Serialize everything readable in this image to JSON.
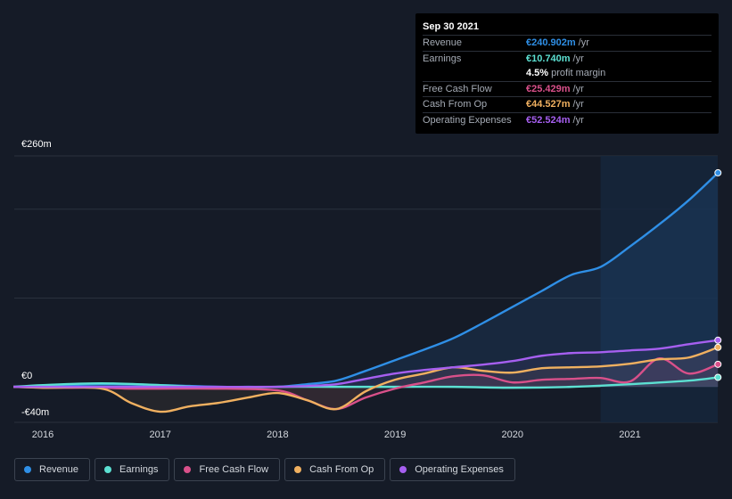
{
  "tooltip": {
    "date": "Sep 30 2021",
    "rows": [
      {
        "label": "Revenue",
        "value": "€240.902m",
        "unit": "/yr",
        "color": "#2f8fe6"
      },
      {
        "label": "Earnings",
        "value": "€10.740m",
        "unit": "/yr",
        "color": "#5ce0d2"
      },
      {
        "label": "",
        "value": "4.5%",
        "unit": "profit margin",
        "color": "#ffffff"
      },
      {
        "label": "Free Cash Flow",
        "value": "€25.429m",
        "unit": "/yr",
        "color": "#d9508a"
      },
      {
        "label": "Cash From Op",
        "value": "€44.527m",
        "unit": "/yr",
        "color": "#f0b060"
      },
      {
        "label": "Operating Expenses",
        "value": "€52.524m",
        "unit": "/yr",
        "color": "#a65ff0"
      }
    ]
  },
  "legend": [
    {
      "label": "Revenue",
      "color": "#2f8fe6"
    },
    {
      "label": "Earnings",
      "color": "#5ce0d2"
    },
    {
      "label": "Free Cash Flow",
      "color": "#d9508a"
    },
    {
      "label": "Cash From Op",
      "color": "#f0b060"
    },
    {
      "label": "Operating Expenses",
      "color": "#a65ff0"
    }
  ],
  "chart_data": {
    "type": "line",
    "ylim": [
      -40,
      260
    ],
    "y_tick_labels": {
      "top": "€260m",
      "zero": "€0",
      "bottom": "-€40m"
    },
    "x_tick_labels": [
      "2016",
      "2017",
      "2018",
      "2019",
      "2020",
      "2021"
    ],
    "x_range": [
      2015.75,
      2021.75
    ],
    "series": [
      {
        "name": "Revenue",
        "color": "#2f8fe6",
        "x": [
          2015.75,
          2016.0,
          2016.5,
          2017.0,
          2017.25,
          2017.5,
          2017.75,
          2018.0,
          2018.25,
          2018.5,
          2018.75,
          2019.0,
          2019.25,
          2019.5,
          2019.75,
          2020.0,
          2020.25,
          2020.5,
          2020.75,
          2021.0,
          2021.25,
          2021.5,
          2021.75
        ],
        "y": [
          0,
          1,
          3,
          2,
          1,
          0,
          0,
          0,
          3,
          7,
          18,
          30,
          42,
          55,
          72,
          90,
          108,
          126,
          135,
          158,
          183,
          210,
          241
        ]
      },
      {
        "name": "Earnings",
        "color": "#5ce0d2",
        "x": [
          2015.75,
          2016.0,
          2016.5,
          2017.0,
          2017.5,
          2018.0,
          2018.5,
          2019.0,
          2019.5,
          2020.0,
          2020.5,
          2021.0,
          2021.5,
          2021.75
        ],
        "y": [
          0,
          2,
          4,
          2,
          -1,
          0,
          0,
          0,
          0,
          -1,
          0,
          3,
          7,
          10.7
        ]
      },
      {
        "name": "Free Cash Flow",
        "color": "#d9508a",
        "x": [
          2015.75,
          2016.0,
          2016.25,
          2016.5,
          2016.75,
          2017.0,
          2017.5,
          2018.0,
          2018.25,
          2018.5,
          2018.75,
          2019.0,
          2019.25,
          2019.5,
          2019.75,
          2020.0,
          2020.25,
          2020.5,
          2020.75,
          2021.0,
          2021.25,
          2021.5,
          2021.75
        ],
        "y": [
          0,
          -1,
          -1,
          -1,
          -2,
          -2,
          -2,
          -4,
          -15,
          -25,
          -12,
          -2,
          5,
          12,
          13,
          5,
          8,
          9,
          10,
          6,
          32,
          15,
          25.4
        ]
      },
      {
        "name": "Cash From Op",
        "color": "#f0b060",
        "x": [
          2015.75,
          2016.0,
          2016.5,
          2016.75,
          2017.0,
          2017.25,
          2017.5,
          2017.75,
          2018.0,
          2018.25,
          2018.5,
          2018.75,
          2019.0,
          2019.25,
          2019.5,
          2019.75,
          2020.0,
          2020.25,
          2020.5,
          2020.75,
          2021.0,
          2021.25,
          2021.5,
          2021.75
        ],
        "y": [
          0,
          -1,
          -2,
          -18,
          -28,
          -22,
          -18,
          -12,
          -7,
          -15,
          -25,
          -5,
          8,
          15,
          22,
          18,
          16,
          21,
          22,
          23,
          26,
          31,
          33,
          44.5
        ]
      },
      {
        "name": "Operating Expenses",
        "color": "#a65ff0",
        "x": [
          2015.75,
          2016.0,
          2016.5,
          2017.0,
          2017.5,
          2018.0,
          2018.25,
          2018.5,
          2018.75,
          2019.0,
          2019.25,
          2019.5,
          2019.75,
          2020.0,
          2020.25,
          2020.5,
          2020.75,
          2021.0,
          2021.25,
          2021.5,
          2021.75
        ],
        "y": [
          0,
          0,
          0,
          0,
          0,
          0,
          1,
          3,
          9,
          15,
          19,
          22,
          25,
          29,
          35,
          38,
          39,
          41,
          43,
          48,
          52.5
        ]
      }
    ]
  }
}
